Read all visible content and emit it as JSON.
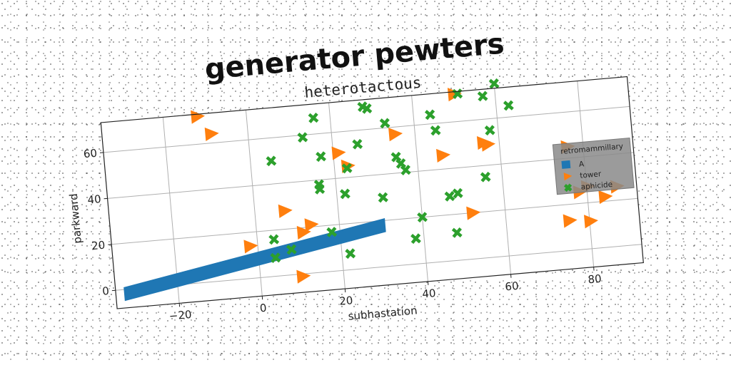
{
  "chart_data": {
    "type": "scatter",
    "suptitle": "generator pewters",
    "title": "heterotactous",
    "xlabel": "subhastation",
    "ylabel": "parkward",
    "xlim": [
      -35,
      92
    ],
    "ylim": [
      -8,
      73
    ],
    "xticks": [
      -20,
      0,
      20,
      40,
      60,
      80
    ],
    "yticks": [
      0,
      20,
      40,
      60
    ],
    "grid": true,
    "legend": {
      "title": "retromammillary",
      "placement": "right"
    },
    "series": [
      {
        "name": "A",
        "kind": "band",
        "color": "#1f77b4",
        "x": [
          -33,
          31
        ],
        "center": [
          -2,
          18
        ],
        "halfwidth": 3
      },
      {
        "name": "tower",
        "kind": "triangle",
        "color": "#ff7f0e",
        "points": [
          [
            -12,
            72
          ],
          [
            -9,
            64
          ],
          [
            21,
            51
          ],
          [
            23,
            45
          ],
          [
            35,
            57
          ],
          [
            46,
            46
          ],
          [
            50,
            72
          ],
          [
            56,
            50
          ],
          [
            57,
            49
          ],
          [
            -2,
            14
          ],
          [
            7,
            28
          ],
          [
            11,
            18
          ],
          [
            13,
            21
          ],
          [
            10,
            -1
          ],
          [
            52,
            20
          ],
          [
            78,
            25
          ],
          [
            80,
            27
          ],
          [
            84,
            22
          ],
          [
            87,
            26
          ],
          [
            75,
            13
          ],
          [
            80,
            12
          ],
          [
            76,
            45
          ]
        ]
      },
      {
        "name": "aphicide",
        "kind": "x",
        "color": "#2ca02c",
        "points": [
          [
            16,
            67
          ],
          [
            13,
            59
          ],
          [
            17,
            50
          ],
          [
            5,
            50
          ],
          [
            28,
            70
          ],
          [
            29,
            69
          ],
          [
            33,
            62
          ],
          [
            26,
            54
          ],
          [
            35,
            47
          ],
          [
            36,
            44
          ],
          [
            37,
            41
          ],
          [
            23,
            44
          ],
          [
            16,
            38
          ],
          [
            16,
            36
          ],
          [
            22,
            33
          ],
          [
            31,
            30
          ],
          [
            44,
            64
          ],
          [
            45,
            57
          ],
          [
            51,
            72
          ],
          [
            57,
            70
          ],
          [
            58,
            55
          ],
          [
            60,
            75
          ],
          [
            63,
            65
          ],
          [
            56,
            35
          ],
          [
            47,
            28
          ],
          [
            49,
            29
          ],
          [
            40,
            20
          ],
          [
            38,
            11
          ],
          [
            48,
            12
          ],
          [
            4,
            16
          ],
          [
            4,
            8
          ],
          [
            8,
            11
          ],
          [
            18,
            17
          ],
          [
            22,
            7
          ]
        ]
      }
    ]
  }
}
